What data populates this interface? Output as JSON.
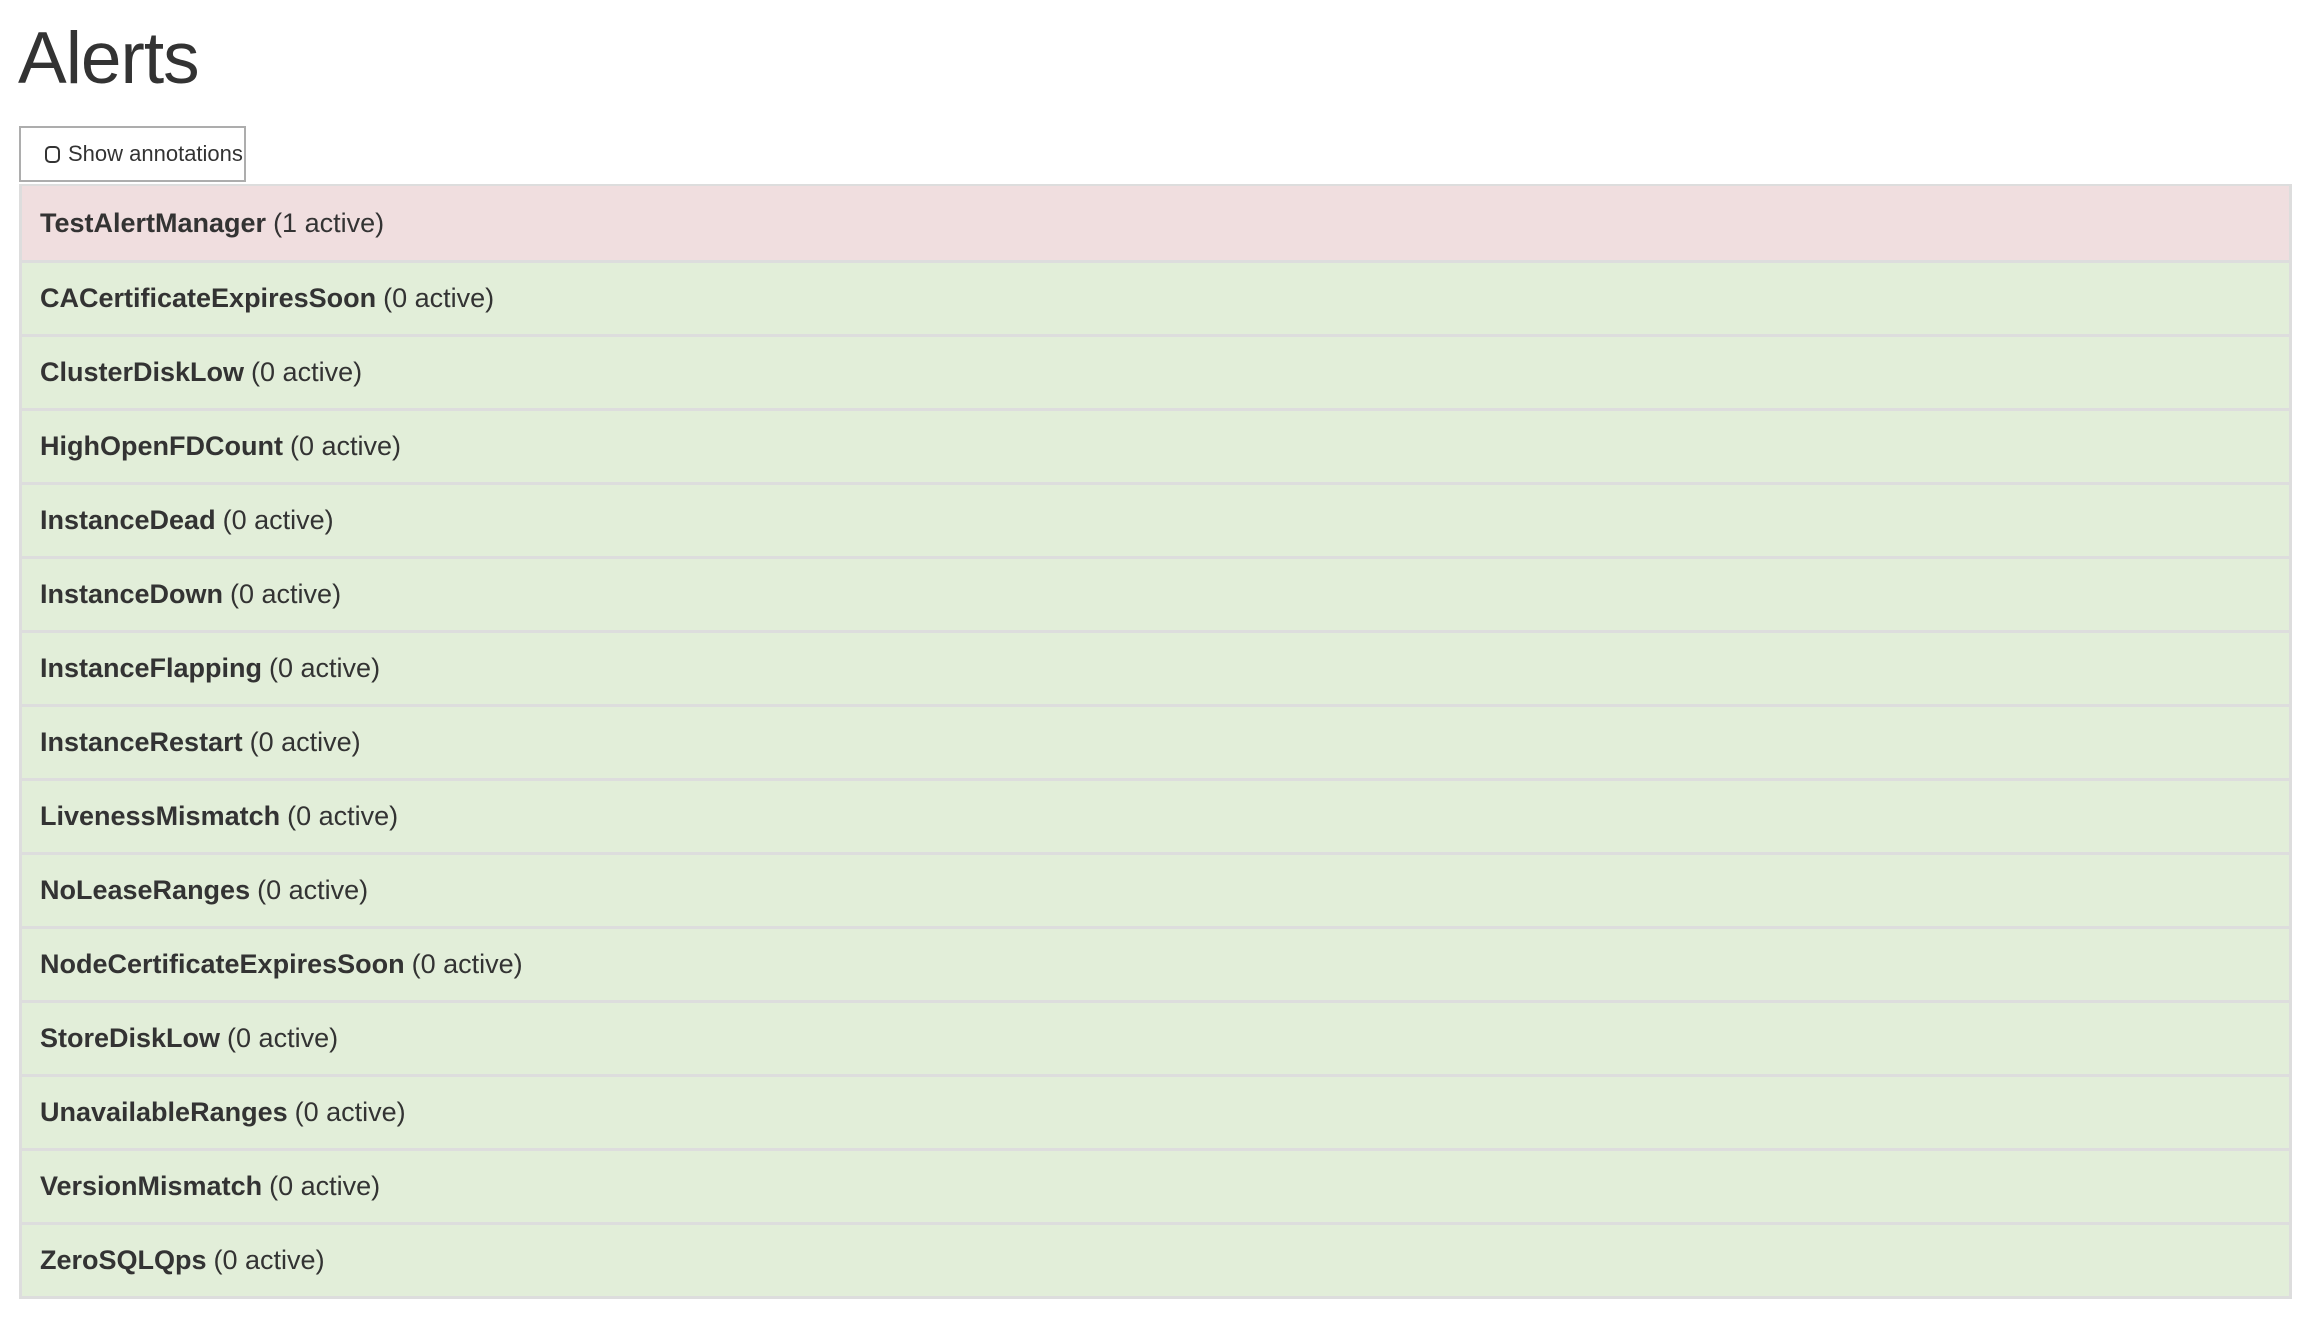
{
  "page_title": "Alerts",
  "show_annotations": {
    "label": "Show annotations",
    "checked": false
  },
  "colors": {
    "firing": "#f0dedf",
    "inactive": "#e2eed9",
    "border": "#dddddd"
  },
  "alerts": [
    {
      "name": "TestAlertManager",
      "count": "(1 active)",
      "state": "firing"
    },
    {
      "name": "CACertificateExpiresSoon",
      "count": "(0 active)",
      "state": "inactive"
    },
    {
      "name": "ClusterDiskLow",
      "count": "(0 active)",
      "state": "inactive"
    },
    {
      "name": "HighOpenFDCount",
      "count": "(0 active)",
      "state": "inactive"
    },
    {
      "name": "InstanceDead",
      "count": "(0 active)",
      "state": "inactive"
    },
    {
      "name": "InstanceDown",
      "count": "(0 active)",
      "state": "inactive"
    },
    {
      "name": "InstanceFlapping",
      "count": "(0 active)",
      "state": "inactive"
    },
    {
      "name": "InstanceRestart",
      "count": "(0 active)",
      "state": "inactive"
    },
    {
      "name": "LivenessMismatch",
      "count": "(0 active)",
      "state": "inactive"
    },
    {
      "name": "NoLeaseRanges",
      "count": "(0 active)",
      "state": "inactive"
    },
    {
      "name": "NodeCertificateExpiresSoon",
      "count": "(0 active)",
      "state": "inactive"
    },
    {
      "name": "StoreDiskLow",
      "count": "(0 active)",
      "state": "inactive"
    },
    {
      "name": "UnavailableRanges",
      "count": "(0 active)",
      "state": "inactive"
    },
    {
      "name": "VersionMismatch",
      "count": "(0 active)",
      "state": "inactive"
    },
    {
      "name": "ZeroSQLQps",
      "count": "(0 active)",
      "state": "inactive"
    }
  ]
}
